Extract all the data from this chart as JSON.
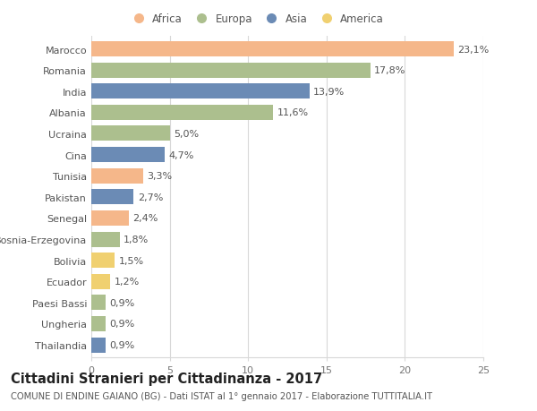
{
  "categories": [
    "Marocco",
    "Romania",
    "India",
    "Albania",
    "Ucraina",
    "Cina",
    "Tunisia",
    "Pakistan",
    "Senegal",
    "Bosnia-Erzegovina",
    "Bolivia",
    "Ecuador",
    "Paesi Bassi",
    "Ungheria",
    "Thailandia"
  ],
  "values": [
    23.1,
    17.8,
    13.9,
    11.6,
    5.0,
    4.7,
    3.3,
    2.7,
    2.4,
    1.8,
    1.5,
    1.2,
    0.9,
    0.9,
    0.9
  ],
  "labels": [
    "23,1%",
    "17,8%",
    "13,9%",
    "11,6%",
    "5,0%",
    "4,7%",
    "3,3%",
    "2,7%",
    "2,4%",
    "1,8%",
    "1,5%",
    "1,2%",
    "0,9%",
    "0,9%",
    "0,9%"
  ],
  "continents": [
    "Africa",
    "Europa",
    "Asia",
    "Europa",
    "Europa",
    "Asia",
    "Africa",
    "Asia",
    "Africa",
    "Europa",
    "America",
    "America",
    "Europa",
    "Europa",
    "Asia"
  ],
  "colors": {
    "Africa": "#F5B78A",
    "Europa": "#ACBF8E",
    "Asia": "#6B8BB5",
    "America": "#F0D070"
  },
  "legend_order": [
    "Africa",
    "Europa",
    "Asia",
    "America"
  ],
  "title": "Cittadini Stranieri per Cittadinanza - 2017",
  "subtitle": "COMUNE DI ENDINE GAIANO (BG) - Dati ISTAT al 1° gennaio 2017 - Elaborazione TUTTITALIA.IT",
  "xlim": [
    0,
    25
  ],
  "xticks": [
    0,
    5,
    10,
    15,
    20,
    25
  ],
  "background_color": "#ffffff",
  "grid_color": "#d8d8d8",
  "bar_height": 0.72,
  "label_fontsize": 8.0,
  "tick_fontsize": 8.0,
  "ytick_fontsize": 8.0,
  "title_fontsize": 10.5,
  "subtitle_fontsize": 7.2,
  "legend_fontsize": 8.5
}
